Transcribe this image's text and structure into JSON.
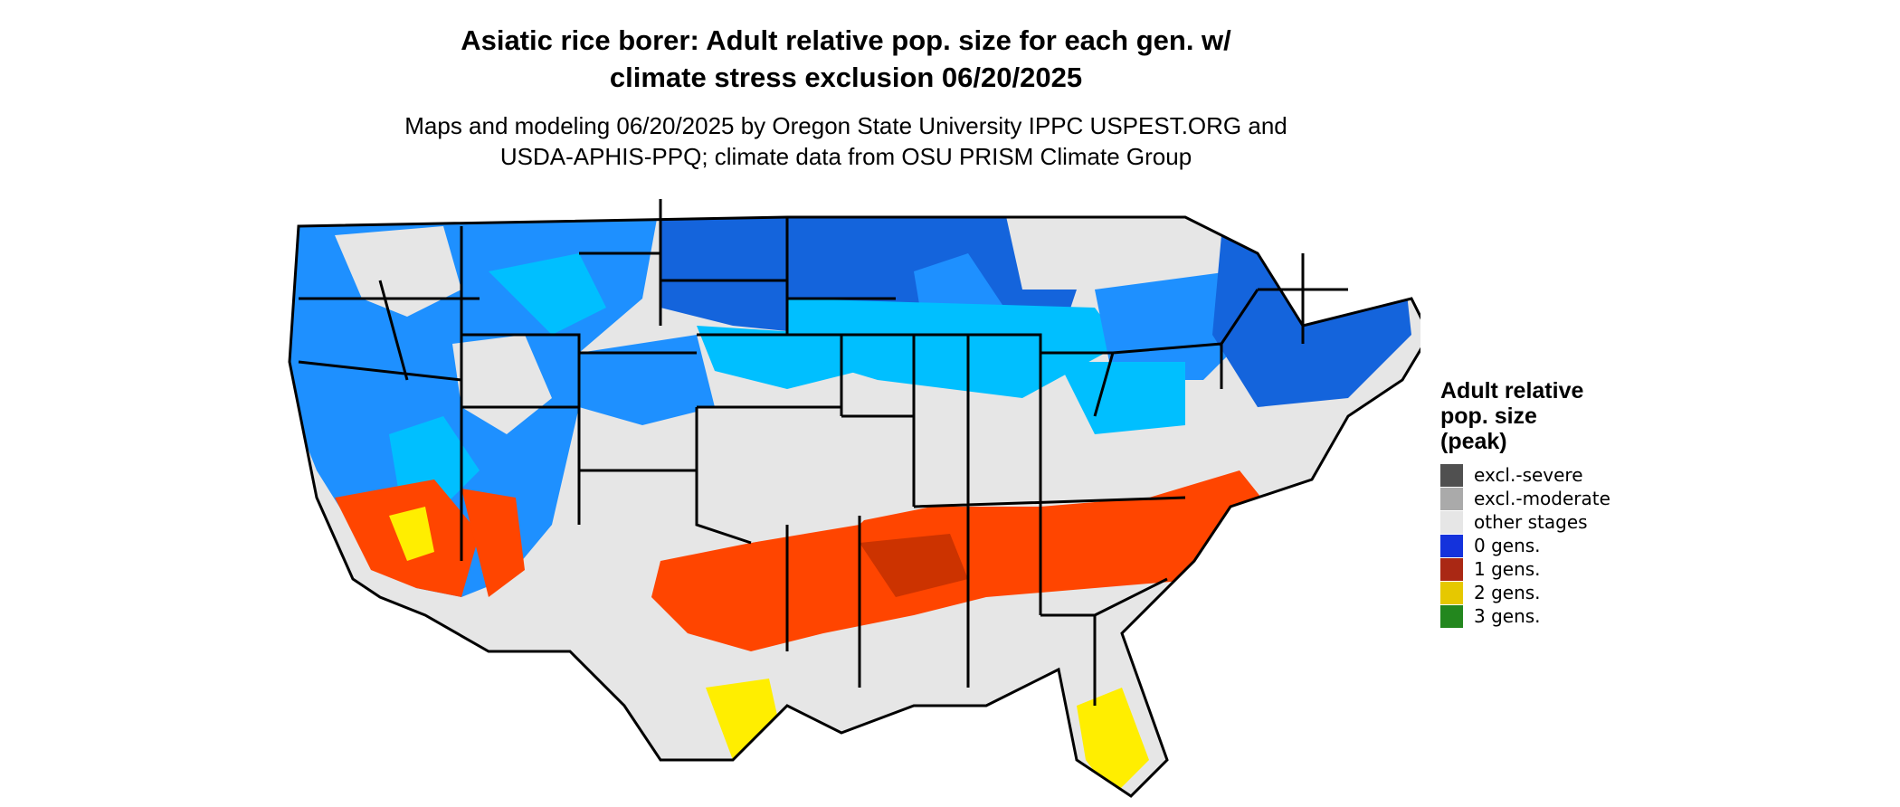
{
  "title_line1": "Asiatic rice borer: Adult relative pop. size for each gen. w/",
  "title_line2": "climate stress exclusion 06/20/2025",
  "subtitle_line1": "Maps and modeling 06/20/2025 by Oregon State University IPPC USPEST.ORG and",
  "subtitle_line2": "USDA-APHIS-PPQ; climate data from OSU PRISM Climate Group",
  "legend": {
    "title_line1": "Adult relative",
    "title_line2": "pop. size",
    "title_line3": "(peak)",
    "items": [
      {
        "label": "excl.-severe",
        "color": "#505050"
      },
      {
        "label": "excl.-moderate",
        "color": "#aaaaaa"
      },
      {
        "label": "other stages",
        "color": "#e6e6e6"
      },
      {
        "label": "0 gens.",
        "color": "#1432dc"
      },
      {
        "label": "1 gens.",
        "color": "#aa2814"
      },
      {
        "label": "2 gens.",
        "color": "#e6c800"
      },
      {
        "label": "3 gens.",
        "color": "#23871e"
      }
    ]
  },
  "map_colors": {
    "background_region": "#e6e6e6",
    "cool_light": "#00bfff",
    "cool_mid": "#1e90ff",
    "cool_dark": "#1464dc",
    "warm": "#ff4500",
    "hot": "#ffee00",
    "state_lines": "#000000"
  }
}
